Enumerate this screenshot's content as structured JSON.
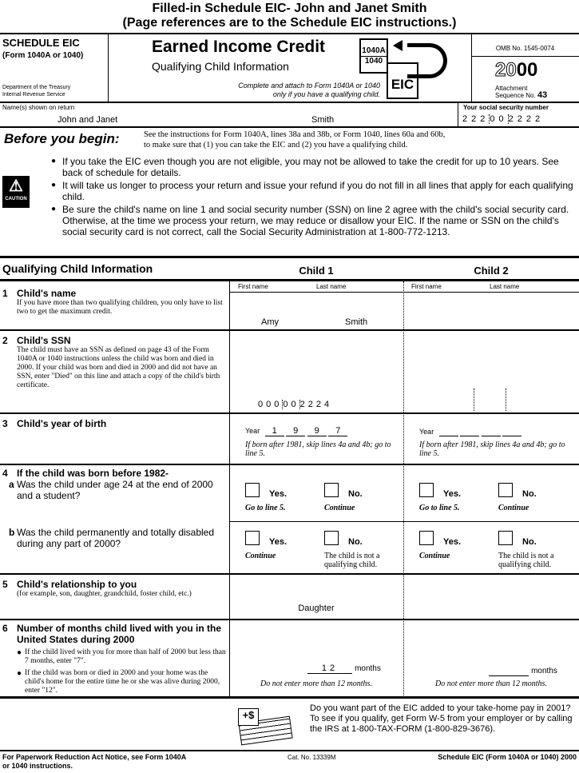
{
  "banner": {
    "line1": "Filled-in Schedule EIC-  John and Janet Smith",
    "line2": "(Page references are to the Schedule EIC instructions.)"
  },
  "header": {
    "schedule": "SCHEDULE EIC",
    "form": "(Form 1040A or 1040)",
    "dept1": "Department of the Treasury",
    "dept2": "Internal Revenue Service",
    "title": "Earned Income Credit",
    "subtitle": "Qualifying Child Information",
    "attach1": "Complete and attach to Form 1040A or 1040",
    "attach2": "only if you have a qualifying child.",
    "icon_1040a": "1040A",
    "icon_1040": "1040",
    "icon_eic": "EIC",
    "omb": "OMB No. 1545-0074",
    "year_outline": "20",
    "year_bold": "00",
    "attachment": "Attachment",
    "sequence": "Sequence No.",
    "seq_no": "43"
  },
  "name_row": {
    "label": "Name(s) shown on return",
    "first": "John and Janet",
    "last": "Smith",
    "ssn_label": "Your social security number",
    "ssn": [
      "222",
      "00",
      "2222"
    ]
  },
  "before": {
    "label": "Before you begin:",
    "text1": "See the instructions for Form 1040A, lines 38a and 38b, or Form 1040, lines 60a and 60b,",
    "text2": "to make sure that (1) you can take the EIC and (2) you have a qualifying child."
  },
  "caution": {
    "icon_label": "CAUTION",
    "bullets": [
      "If you take the EIC even though you are not eligible, you may not be allowed to take the credit for up to 10 years. See back of schedule for details.",
      "It will take us longer to process your return and issue your refund if you do not fill in all lines that apply for each qualifying child.",
      "Be sure the child's name on line 1 and social security number (SSN) on line 2 agree with the child's social security card. Otherwise, at the time we process your return, we may reduce or disallow your EIC. If the name or SSN on the child's social security card is not correct, call the Social Security Administration at 1-800-772-1213."
    ]
  },
  "section": {
    "title": "Qualifying Child Information",
    "child1": "Child 1",
    "child2": "Child 2",
    "first_name": "First name",
    "last_name": "Last name"
  },
  "lines": {
    "l1": {
      "num": "1",
      "title": "Child's name",
      "desc": "If you have more than two qualifying children, you only have to list two to get the maximum credit."
    },
    "l2": {
      "num": "2",
      "title": "Child's SSN",
      "desc": "The child must have an SSN as defined on page 43 of the Form 1040A or 1040 instructions unless the child was born and died in 2000. If your child was born and died in 2000 and did not have an SSN, enter \"Died\" on this line and attach a copy of the child's birth certificate."
    },
    "l3": {
      "num": "3",
      "title": "Child's year of birth",
      "year": "Year",
      "note": "If born after 1981, skip lines 4a and 4b; go to line 5."
    },
    "l4": {
      "num": "4",
      "title": "If the child was born before 1982-",
      "a": "a",
      "a_text": "Was the child under age 24 at the end of 2000 and a student?",
      "b": "b",
      "b_text": "Was the child permanently and totally disabled during any part of 2000?",
      "yes": "Yes.",
      "no": "No.",
      "a_yes_note": "Go to line 5.",
      "a_no_note": "Continue",
      "b_yes_note": "Continue",
      "b_no_note": "The child is not a qualifying child."
    },
    "l5": {
      "num": "5",
      "title": "Child's relationship to you",
      "desc": "(for example, son, daughter, grandchild, foster child, etc.)"
    },
    "l6": {
      "num": "6",
      "title": "Number of months child lived with you in the United States during 2000",
      "b1": "If the child lived with you for more than half of 2000 but less than 7 months, enter \"7\".",
      "b2": "If the child was born or died in 2000 and your home was the child's home for the entire time he or she was alive during 2000, enter \"12\".",
      "months": "months",
      "note": "Do not enter more than 12 months."
    }
  },
  "child1": {
    "first": "Amy",
    "last": "Smith",
    "ssn": [
      "000",
      "00",
      "2224"
    ],
    "year": [
      "1",
      "9",
      "9",
      "7"
    ],
    "relationship": "Daughter",
    "months": "12"
  },
  "child2": {
    "first": "",
    "last": "",
    "relationship": "",
    "months": ""
  },
  "w5": {
    "text": "Do you want part of the EIC added to your take-home pay in 2001? To see if you qualify, get Form W-5 from your employer or by calling the IRS at 1-800-TAX-FORM (1-800-829-3676)."
  },
  "footer": {
    "left1": "For Paperwork Reduction Act Notice, see Form 1040A",
    "left2": "or 1040 instructions.",
    "cat": "Cat. No. 13339M",
    "right": "Schedule EIC (Form 1040A or 1040) 2000"
  }
}
